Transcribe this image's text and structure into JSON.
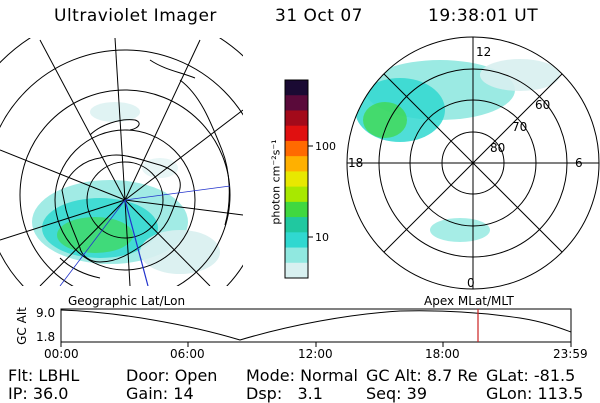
{
  "header": {
    "instrument": "Ultraviolet Imager",
    "date": "31 Oct 07",
    "time": "19:38:01 UT"
  },
  "left_map": {
    "caption": "Geographic Lat/Lon"
  },
  "right_map": {
    "caption": "Apex  MLat/MLT",
    "mlt_labels": [
      "12",
      "18",
      "6",
      "0"
    ],
    "mlat_labels": [
      "60",
      "70",
      "80"
    ]
  },
  "colorbar": {
    "unit_label": "photon cm⁻²s⁻¹",
    "ticks": [
      "100",
      "10"
    ],
    "colors": [
      "#1a0a33",
      "#5a0a3a",
      "#a30a1a",
      "#e01010",
      "#ff6a00",
      "#ffb000",
      "#e8e800",
      "#a8e800",
      "#40d840",
      "#20c8a0",
      "#30d8d0",
      "#90e8e0",
      "#d8f0f0"
    ]
  },
  "timeline": {
    "axis_label": "GC Alt",
    "y_ticks": [
      "9.0",
      "1.8"
    ],
    "x_ticks": [
      "00:00",
      "06:00",
      "12:00",
      "18:00",
      "23:59"
    ],
    "current_time_marker_color": "#cc2222"
  },
  "info": {
    "row1": [
      {
        "label": "Flt:",
        "value": "LBHL"
      },
      {
        "label": "Door:",
        "value": "Open"
      },
      {
        "label": "Mode:",
        "value": "Normal"
      },
      {
        "label": "GC Alt:",
        "value": "8.7 Re"
      },
      {
        "label": "GLat:",
        "value": "-81.5"
      }
    ],
    "row2": [
      {
        "label": "IP:",
        "value": "36.0"
      },
      {
        "label": "Gain:",
        "value": "14"
      },
      {
        "label": "Dsp:",
        "value": "3.1"
      },
      {
        "label": "Seq:",
        "value": "39"
      },
      {
        "label": "GLon:",
        "value": "113.5"
      }
    ]
  }
}
